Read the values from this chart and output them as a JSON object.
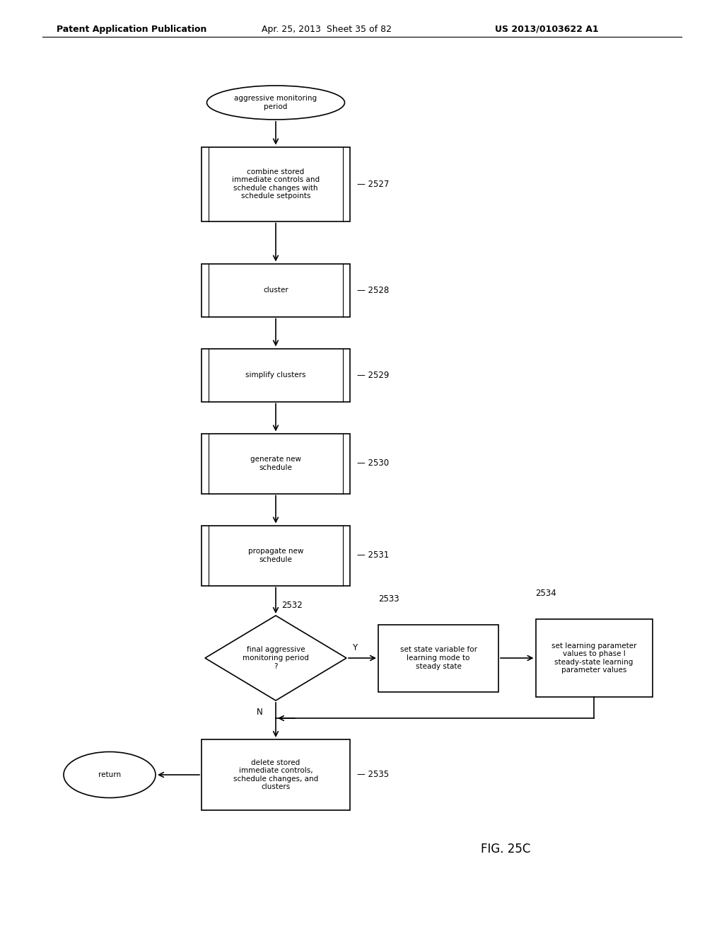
{
  "bg_color": "#ffffff",
  "header_text": "Patent Application Publication",
  "header_date": "Apr. 25, 2013  Sheet 35 of 82",
  "header_patent": "US 2013/0103622 A1",
  "fig_label": "FIG. 25C",
  "title_fontsize": 9,
  "body_fontsize": 7.5,
  "label_fontsize": 8.5,
  "fig_label_fontsize": 12
}
